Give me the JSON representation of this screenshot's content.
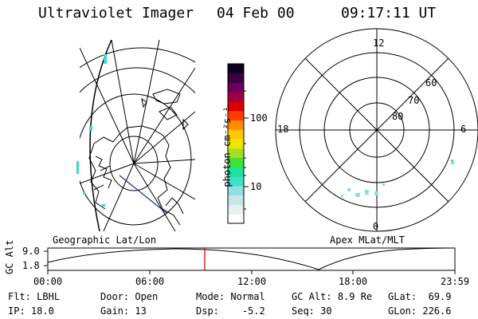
{
  "header": {
    "instrument": "Ultraviolet Imager",
    "date": "04 Feb 00",
    "time": "09:17:11 UT"
  },
  "colorbar": {
    "unit_label": "photon cm⁻²s⁻¹",
    "ticks": [
      "100",
      "10"
    ],
    "colors": [
      "#ffffff",
      "#e6f0f0",
      "#c8e6e6",
      "#8fe0e0",
      "#40e0c8",
      "#20e0a0",
      "#40e040",
      "#a0e020",
      "#e8e800",
      "#ffc800",
      "#ff8c00",
      "#ff3c00",
      "#d80000",
      "#a00040",
      "#6a0060",
      "#3a0040",
      "#100020"
    ]
  },
  "panels": {
    "left_label": "Geographic Lat/Lon",
    "right_label": "Apex MLat/MLT"
  },
  "polar": {
    "mlt_labels": {
      "top": "12",
      "bottom": "0",
      "left": "18",
      "right": "6"
    },
    "lat_labels": [
      "60",
      "70",
      "80"
    ]
  },
  "timeline": {
    "ylabel": "GC Alt",
    "yticks": [
      "9.0",
      "1.8"
    ],
    "xticks": [
      "00:00",
      "06:00",
      "12:00",
      "18:00",
      "23:59"
    ]
  },
  "info": {
    "row1": [
      {
        "k": "Flt:",
        "v": "LBHL"
      },
      {
        "k": "Door:",
        "v": "Open"
      },
      {
        "k": "Mode:",
        "v": "Normal"
      },
      {
        "k": "GC Alt:",
        "v": "8.9 Re"
      },
      {
        "k": "GLat:",
        "v": "69.9"
      }
    ],
    "row2": [
      {
        "k": "IP:",
        "v": "18.0"
      },
      {
        "k": "Gain:",
        "v": "13"
      },
      {
        "k": "Dsp:",
        "v": "-5.2"
      },
      {
        "k": "Seq:",
        "v": "30"
      },
      {
        "k": "GLon:",
        "v": "226.6"
      }
    ]
  }
}
